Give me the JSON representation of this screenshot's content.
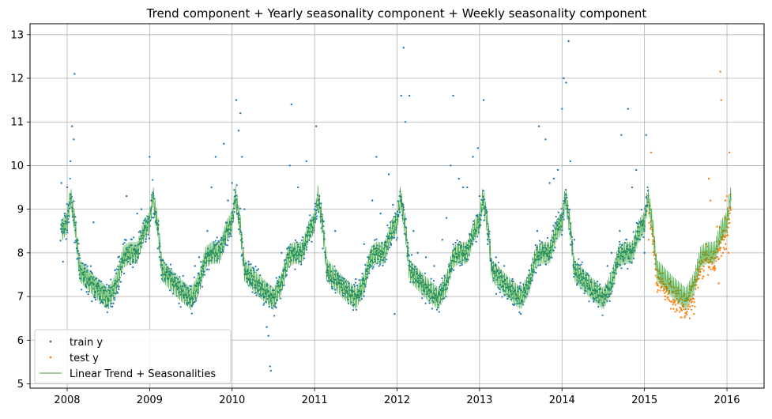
{
  "chart_data": {
    "type": "scatter",
    "title": "Trend component + Yearly seasonality component + Weekly seasonality component",
    "xlabel": "",
    "ylabel": "",
    "xlim": [
      2007.55,
      2016.45
    ],
    "ylim": [
      4.9,
      13.25
    ],
    "x_ticks": [
      2008,
      2009,
      2010,
      2011,
      2012,
      2013,
      2014,
      2015,
      2016
    ],
    "x_tick_labels": [
      "2008",
      "2009",
      "2010",
      "2011",
      "2012",
      "2013",
      "2014",
      "2015",
      "2016"
    ],
    "y_ticks": [
      5,
      6,
      7,
      8,
      9,
      10,
      11,
      12,
      13
    ],
    "y_tick_labels": [
      "5",
      "6",
      "7",
      "8",
      "9",
      "10",
      "11",
      "12",
      "13"
    ],
    "grid": true,
    "legend_position": "bottom-left",
    "series": [
      {
        "name": "train y",
        "kind": "scatter",
        "color": "#1f77b4",
        "x_range": [
          2007.92,
          2015.05
        ],
        "points": [
          [
            2007.93,
            9.6
          ],
          [
            2007.95,
            7.8
          ],
          [
            2007.97,
            8.9
          ],
          [
            2008.0,
            9.5
          ],
          [
            2008.02,
            8.7
          ],
          [
            2008.04,
            10.1
          ],
          [
            2008.06,
            10.9
          ],
          [
            2008.08,
            10.6
          ],
          [
            2008.09,
            12.1
          ],
          [
            2008.12,
            8.1
          ],
          [
            2008.15,
            7.5
          ],
          [
            2008.2,
            7.4
          ],
          [
            2008.25,
            7.3
          ],
          [
            2008.32,
            8.7
          ],
          [
            2008.4,
            7.0
          ],
          [
            2008.5,
            6.9
          ],
          [
            2008.58,
            7.6
          ],
          [
            2008.62,
            7.9
          ],
          [
            2008.7,
            8.3
          ],
          [
            2008.72,
            9.3
          ],
          [
            2008.8,
            7.8
          ],
          [
            2008.85,
            8.9
          ],
          [
            2008.9,
            9.0
          ],
          [
            2008.95,
            8.6
          ],
          [
            2009.0,
            10.2
          ],
          [
            2009.02,
            9.2
          ],
          [
            2009.05,
            8.9
          ],
          [
            2009.1,
            8.1
          ],
          [
            2009.15,
            7.4
          ],
          [
            2009.25,
            7.5
          ],
          [
            2009.35,
            7.2
          ],
          [
            2009.45,
            7.2
          ],
          [
            2009.55,
            7.7
          ],
          [
            2009.6,
            7.9
          ],
          [
            2009.7,
            8.5
          ],
          [
            2009.75,
            9.5
          ],
          [
            2009.8,
            10.2
          ],
          [
            2009.9,
            10.5
          ],
          [
            2009.95,
            9.2
          ],
          [
            2010.0,
            9.6
          ],
          [
            2010.05,
            11.5
          ],
          [
            2010.08,
            10.8
          ],
          [
            2010.1,
            11.2
          ],
          [
            2010.12,
            10.2
          ],
          [
            2010.15,
            9.0
          ],
          [
            2010.2,
            7.8
          ],
          [
            2010.3,
            7.6
          ],
          [
            2010.35,
            7.2
          ],
          [
            2010.4,
            7.0
          ],
          [
            2010.42,
            6.3
          ],
          [
            2010.44,
            6.1
          ],
          [
            2010.46,
            5.4
          ],
          [
            2010.47,
            5.3
          ],
          [
            2010.55,
            7.3
          ],
          [
            2010.6,
            8.0
          ],
          [
            2010.7,
            10.0
          ],
          [
            2010.72,
            11.4
          ],
          [
            2010.8,
            9.5
          ],
          [
            2010.9,
            10.1
          ],
          [
            2011.0,
            9.0
          ],
          [
            2011.02,
            10.9
          ],
          [
            2011.1,
            8.1
          ],
          [
            2011.15,
            7.6
          ],
          [
            2011.25,
            8.5
          ],
          [
            2011.35,
            7.3
          ],
          [
            2011.4,
            7.2
          ],
          [
            2011.5,
            7.4
          ],
          [
            2011.6,
            8.2
          ],
          [
            2011.7,
            9.2
          ],
          [
            2011.75,
            10.2
          ],
          [
            2011.8,
            8.9
          ],
          [
            2011.9,
            9.8
          ],
          [
            2011.95,
            9.1
          ],
          [
            2011.97,
            6.6
          ],
          [
            2012.05,
            11.6
          ],
          [
            2012.08,
            12.7
          ],
          [
            2012.1,
            11.0
          ],
          [
            2012.15,
            11.6
          ],
          [
            2012.2,
            8.5
          ],
          [
            2012.25,
            8.0
          ],
          [
            2012.35,
            7.9
          ],
          [
            2012.45,
            7.7
          ],
          [
            2012.55,
            8.3
          ],
          [
            2012.6,
            8.8
          ],
          [
            2012.65,
            10.0
          ],
          [
            2012.68,
            11.6
          ],
          [
            2012.75,
            9.7
          ],
          [
            2012.8,
            9.5
          ],
          [
            2012.85,
            9.5
          ],
          [
            2012.92,
            10.2
          ],
          [
            2012.98,
            10.4
          ],
          [
            2013.0,
            9.3
          ],
          [
            2013.05,
            11.5
          ],
          [
            2013.1,
            8.2
          ],
          [
            2013.2,
            7.9
          ],
          [
            2013.3,
            7.7
          ],
          [
            2013.4,
            7.4
          ],
          [
            2013.5,
            6.6
          ],
          [
            2013.6,
            7.6
          ],
          [
            2013.7,
            8.5
          ],
          [
            2013.72,
            10.9
          ],
          [
            2013.8,
            10.6
          ],
          [
            2013.85,
            9.6
          ],
          [
            2013.9,
            9.7
          ],
          [
            2013.95,
            9.9
          ],
          [
            2014.0,
            11.3
          ],
          [
            2014.02,
            12.0
          ],
          [
            2014.05,
            11.9
          ],
          [
            2014.08,
            12.85
          ],
          [
            2014.1,
            10.1
          ],
          [
            2014.15,
            8.3
          ],
          [
            2014.25,
            7.6
          ],
          [
            2014.3,
            7.5
          ],
          [
            2014.4,
            7.3
          ],
          [
            2014.5,
            7.0
          ],
          [
            2014.55,
            7.7
          ],
          [
            2014.6,
            8.0
          ],
          [
            2014.7,
            8.5
          ],
          [
            2014.72,
            10.7
          ],
          [
            2014.8,
            11.3
          ],
          [
            2014.85,
            9.5
          ],
          [
            2014.9,
            9.9
          ],
          [
            2014.95,
            8.7
          ],
          [
            2015.0,
            8.0
          ],
          [
            2015.02,
            10.7
          ]
        ]
      },
      {
        "name": "test y",
        "kind": "scatter",
        "color": "#ff7f0e",
        "x_range": [
          2015.05,
          2016.05
        ],
        "points": [
          [
            2015.05,
            8.3
          ],
          [
            2015.08,
            10.3
          ],
          [
            2015.1,
            8.2
          ],
          [
            2015.15,
            7.6
          ],
          [
            2015.2,
            7.2
          ],
          [
            2015.25,
            7.0
          ],
          [
            2015.3,
            7.4
          ],
          [
            2015.35,
            7.1
          ],
          [
            2015.4,
            7.2
          ],
          [
            2015.45,
            7.0
          ],
          [
            2015.5,
            6.9
          ],
          [
            2015.55,
            6.5
          ],
          [
            2015.6,
            6.6
          ],
          [
            2015.65,
            7.4
          ],
          [
            2015.7,
            7.8
          ],
          [
            2015.75,
            8.2
          ],
          [
            2015.78,
            9.7
          ],
          [
            2015.8,
            9.2
          ],
          [
            2015.85,
            7.7
          ],
          [
            2015.88,
            8.6
          ],
          [
            2015.9,
            7.3
          ],
          [
            2015.92,
            12.15
          ],
          [
            2015.93,
            11.5
          ],
          [
            2015.95,
            8.0
          ],
          [
            2015.98,
            9.2
          ],
          [
            2016.0,
            9.3
          ],
          [
            2016.02,
            8.0
          ],
          [
            2016.03,
            10.3
          ]
        ]
      },
      {
        "name": "Linear Trend + Seasonalities",
        "kind": "line",
        "color": "#2ca02c",
        "x_range": [
          2007.93,
          2016.05
        ],
        "seasonal_curve": [
          [
            0.0,
            8.7
          ],
          [
            0.04,
            9.3
          ],
          [
            0.1,
            8.6
          ],
          [
            0.15,
            7.6
          ],
          [
            0.25,
            7.4
          ],
          [
            0.35,
            7.2
          ],
          [
            0.5,
            6.95
          ],
          [
            0.6,
            7.3
          ],
          [
            0.68,
            7.9
          ],
          [
            0.75,
            8.0
          ],
          [
            0.85,
            8.0
          ],
          [
            0.93,
            8.5
          ],
          [
            1.0,
            8.7
          ]
        ],
        "trend_per_year": 0.0
      }
    ]
  }
}
